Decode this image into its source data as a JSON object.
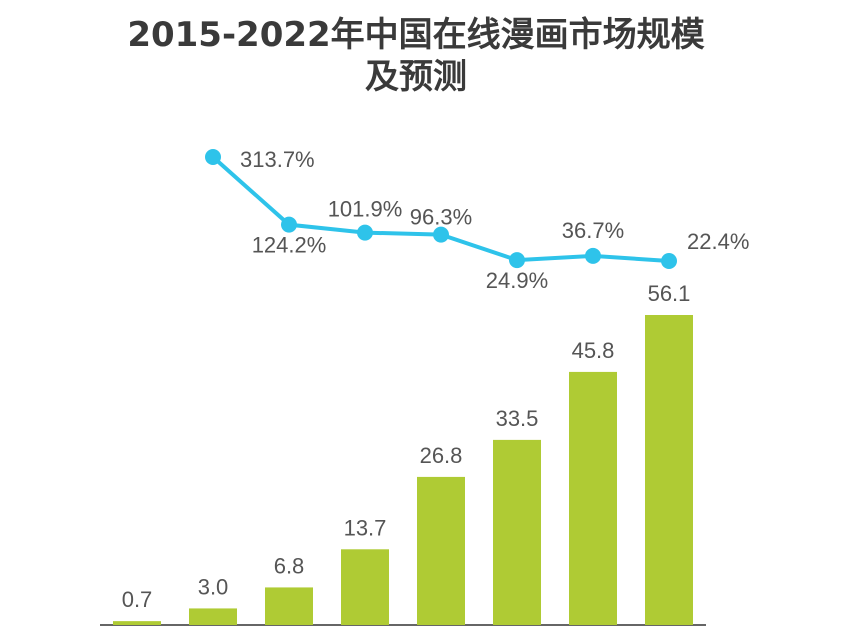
{
  "chart_data": {
    "type": "bar_line",
    "title": "2015-2022年中国在线漫画市场规模及预测",
    "series": [
      {
        "type": "bar",
        "color": "#afcb34",
        "values": [
          0.7,
          3.0,
          6.8,
          13.7,
          26.8,
          33.5,
          45.8,
          56.1
        ],
        "value_labels": [
          "0.7",
          "3.0",
          "6.8",
          "13.7",
          "26.8",
          "33.5",
          "45.8",
          "56.1"
        ]
      },
      {
        "type": "line",
        "color": "#2ec3ea",
        "values": [
          null,
          313.7,
          124.2,
          101.9,
          96.3,
          24.9,
          36.7,
          22.4
        ],
        "value_labels": [
          null,
          "313.7%",
          "124.2%",
          "101.9%",
          "96.3%",
          "24.9%",
          "36.7%",
          "22.4%"
        ]
      }
    ]
  }
}
